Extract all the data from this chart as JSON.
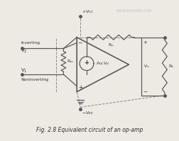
{
  "title": "Fig. 2.8 Equivalent circuit of an op-amp",
  "watermark": "WWW.EEGUIDE.COM",
  "bg_color": "#ede9e3",
  "line_color": "#555555",
  "text_color": "#333333",
  "figsize": [
    2.53,
    1.99
  ],
  "dpi": 100
}
